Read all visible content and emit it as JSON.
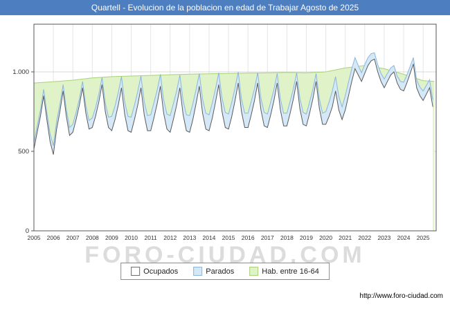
{
  "title_bar": {
    "text": "Quartell - Evolucion de la poblacion en edad de Trabajar Agosto de 2025",
    "bg": "#4d7ebf",
    "fg": "#ffffff"
  },
  "watermark": "FORO-CIUDAD.COM",
  "footer": {
    "url": "http://www.foro-ciudad.com"
  },
  "legend": {
    "items": [
      {
        "label": "Ocupados",
        "swatch_fill": "#ffffff",
        "swatch_border": "#6a6a6a"
      },
      {
        "label": "Parados",
        "swatch_fill": "#d4e8f7",
        "swatch_border": "#8ab6dd"
      },
      {
        "label": "Hab. entre 16-64",
        "swatch_fill": "#e0f2c8",
        "swatch_border": "#a8d178"
      }
    ]
  },
  "axes": {
    "y_ticks": [
      {
        "label": "0",
        "value": 0
      },
      {
        "label": "500",
        "value": 500
      },
      {
        "label": "1.000",
        "value": 1000
      }
    ],
    "x_ticks": [
      2005,
      2006,
      2007,
      2008,
      2009,
      2010,
      2011,
      2012,
      2013,
      2014,
      2015,
      2016,
      2017,
      2018,
      2019,
      2020,
      2021,
      2022,
      2023,
      2024,
      2025
    ]
  },
  "chart_data": {
    "type": "area",
    "title": "Quartell - Evolucion de la poblacion en edad de Trabajar Agosto de 2025",
    "xlabel": "",
    "ylabel": "",
    "x_range": [
      2005,
      2025.67
    ],
    "y_range": [
      0,
      1300
    ],
    "grid": true,
    "legend_position": "bottom",
    "colors": {
      "grid_vertical": "#e5e5e5",
      "grid_horizontal": "#d9d9d9",
      "plot_border": "#555555"
    },
    "series": [
      {
        "name": "Hab. entre 16-64",
        "color_fill": "#e0f2c8",
        "color_stroke": "#a8d178",
        "x": [
          2005,
          2006,
          2007,
          2008,
          2009,
          2010,
          2011,
          2012,
          2013,
          2014,
          2015,
          2016,
          2017,
          2018,
          2019,
          2020,
          2021,
          2022,
          2023,
          2024,
          2025,
          2025.58
        ],
        "values": [
          930,
          938,
          948,
          962,
          970,
          974,
          978,
          982,
          986,
          988,
          990,
          992,
          994,
          996,
          994,
          1000,
          1025,
          1040,
          1020,
          985,
          945,
          940
        ]
      },
      {
        "name": "Parados",
        "stacked_on": "Ocupados",
        "color_fill": "#d4e8f7",
        "color_stroke": "#8ab6dd",
        "x_start": 2005,
        "x_step": 0.166667,
        "values": [
          40,
          40,
          40,
          40,
          45,
          50,
          55,
          50,
          45,
          40,
          45,
          50,
          50,
          45,
          40,
          40,
          45,
          55,
          60,
          55,
          50,
          45,
          55,
          65,
          90,
          85,
          80,
          70,
          80,
          90,
          95,
          90,
          85,
          75,
          85,
          95,
          100,
          95,
          85,
          75,
          85,
          95,
          105,
          100,
          90,
          80,
          90,
          100,
          105,
          100,
          90,
          80,
          90,
          100,
          100,
          95,
          85,
          75,
          85,
          95,
          95,
          90,
          80,
          70,
          80,
          90,
          90,
          85,
          75,
          65,
          75,
          85,
          85,
          80,
          70,
          60,
          70,
          80,
          80,
          75,
          65,
          55,
          65,
          75,
          75,
          70,
          60,
          50,
          60,
          70,
          80,
          90,
          100,
          90,
          85,
          80,
          90,
          85,
          80,
          70,
          60,
          55,
          55,
          50,
          45,
          40,
          45,
          50,
          55,
          50,
          45,
          40,
          45,
          50,
          55,
          50,
          45,
          40,
          50,
          55,
          60,
          55,
          50,
          45
        ]
      },
      {
        "name": "Ocupados",
        "color_fill": "#ffffff",
        "color_stroke": "#5a5a5a",
        "x_start": 2005,
        "x_step": 0.166667,
        "values": [
          515,
          620,
          720,
          850,
          700,
          560,
          480,
          640,
          750,
          880,
          720,
          600,
          620,
          700,
          790,
          900,
          740,
          640,
          650,
          720,
          810,
          920,
          750,
          650,
          630,
          700,
          790,
          900,
          730,
          630,
          620,
          700,
          790,
          900,
          730,
          630,
          630,
          710,
          800,
          910,
          740,
          640,
          620,
          700,
          790,
          900,
          730,
          630,
          620,
          700,
          800,
          910,
          740,
          640,
          630,
          710,
          810,
          920,
          750,
          650,
          640,
          720,
          820,
          930,
          750,
          650,
          650,
          730,
          820,
          930,
          760,
          660,
          650,
          730,
          820,
          930,
          760,
          660,
          660,
          740,
          830,
          940,
          770,
          670,
          660,
          740,
          830,
          940,
          770,
          670,
          670,
          720,
          780,
          880,
          760,
          700,
          760,
          850,
          940,
          1020,
          980,
          940,
          990,
          1040,
          1070,
          1080,
          1000,
          940,
          900,
          940,
          980,
          1000,
          930,
          890,
          880,
          930,
          990,
          1050,
          900,
          850,
          820,
          860,
          900,
          780
        ]
      }
    ]
  }
}
